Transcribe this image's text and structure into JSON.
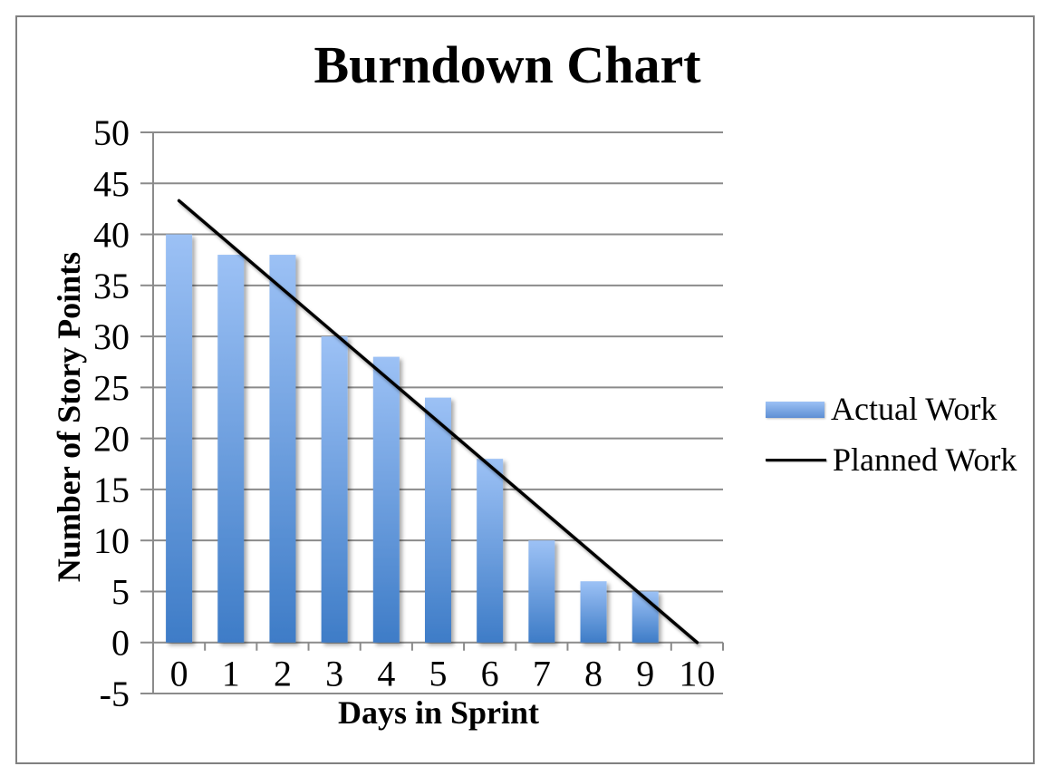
{
  "chart_data": {
    "type": "bar",
    "title": "Burndown Chart",
    "xlabel": "Days in Sprint",
    "ylabel": "Number of Story Points",
    "categories": [
      "0",
      "1",
      "2",
      "3",
      "4",
      "5",
      "6",
      "7",
      "8",
      "9",
      "10"
    ],
    "series": [
      {
        "name": "Actual Work",
        "type": "bar",
        "values": [
          40,
          38,
          38,
          30,
          28,
          24,
          18,
          10,
          6,
          5,
          null
        ]
      },
      {
        "name": "Planned Work",
        "type": "line",
        "x": [
          0,
          10
        ],
        "values": [
          43.3,
          0
        ]
      }
    ],
    "ylim": [
      -5,
      50
    ],
    "ytick_step": 5,
    "yticks": [
      50,
      45,
      40,
      35,
      30,
      25,
      20,
      15,
      10,
      5,
      0,
      -5
    ],
    "grid": true,
    "legend_position": "right"
  },
  "colors": {
    "bar_gradient_top": "#9CC1F5",
    "bar_gradient_bottom": "#3E7CC7",
    "planned_line": "#000000",
    "gridline": "#8B8B8B",
    "frame_border": "#808080",
    "text": "#000000"
  }
}
